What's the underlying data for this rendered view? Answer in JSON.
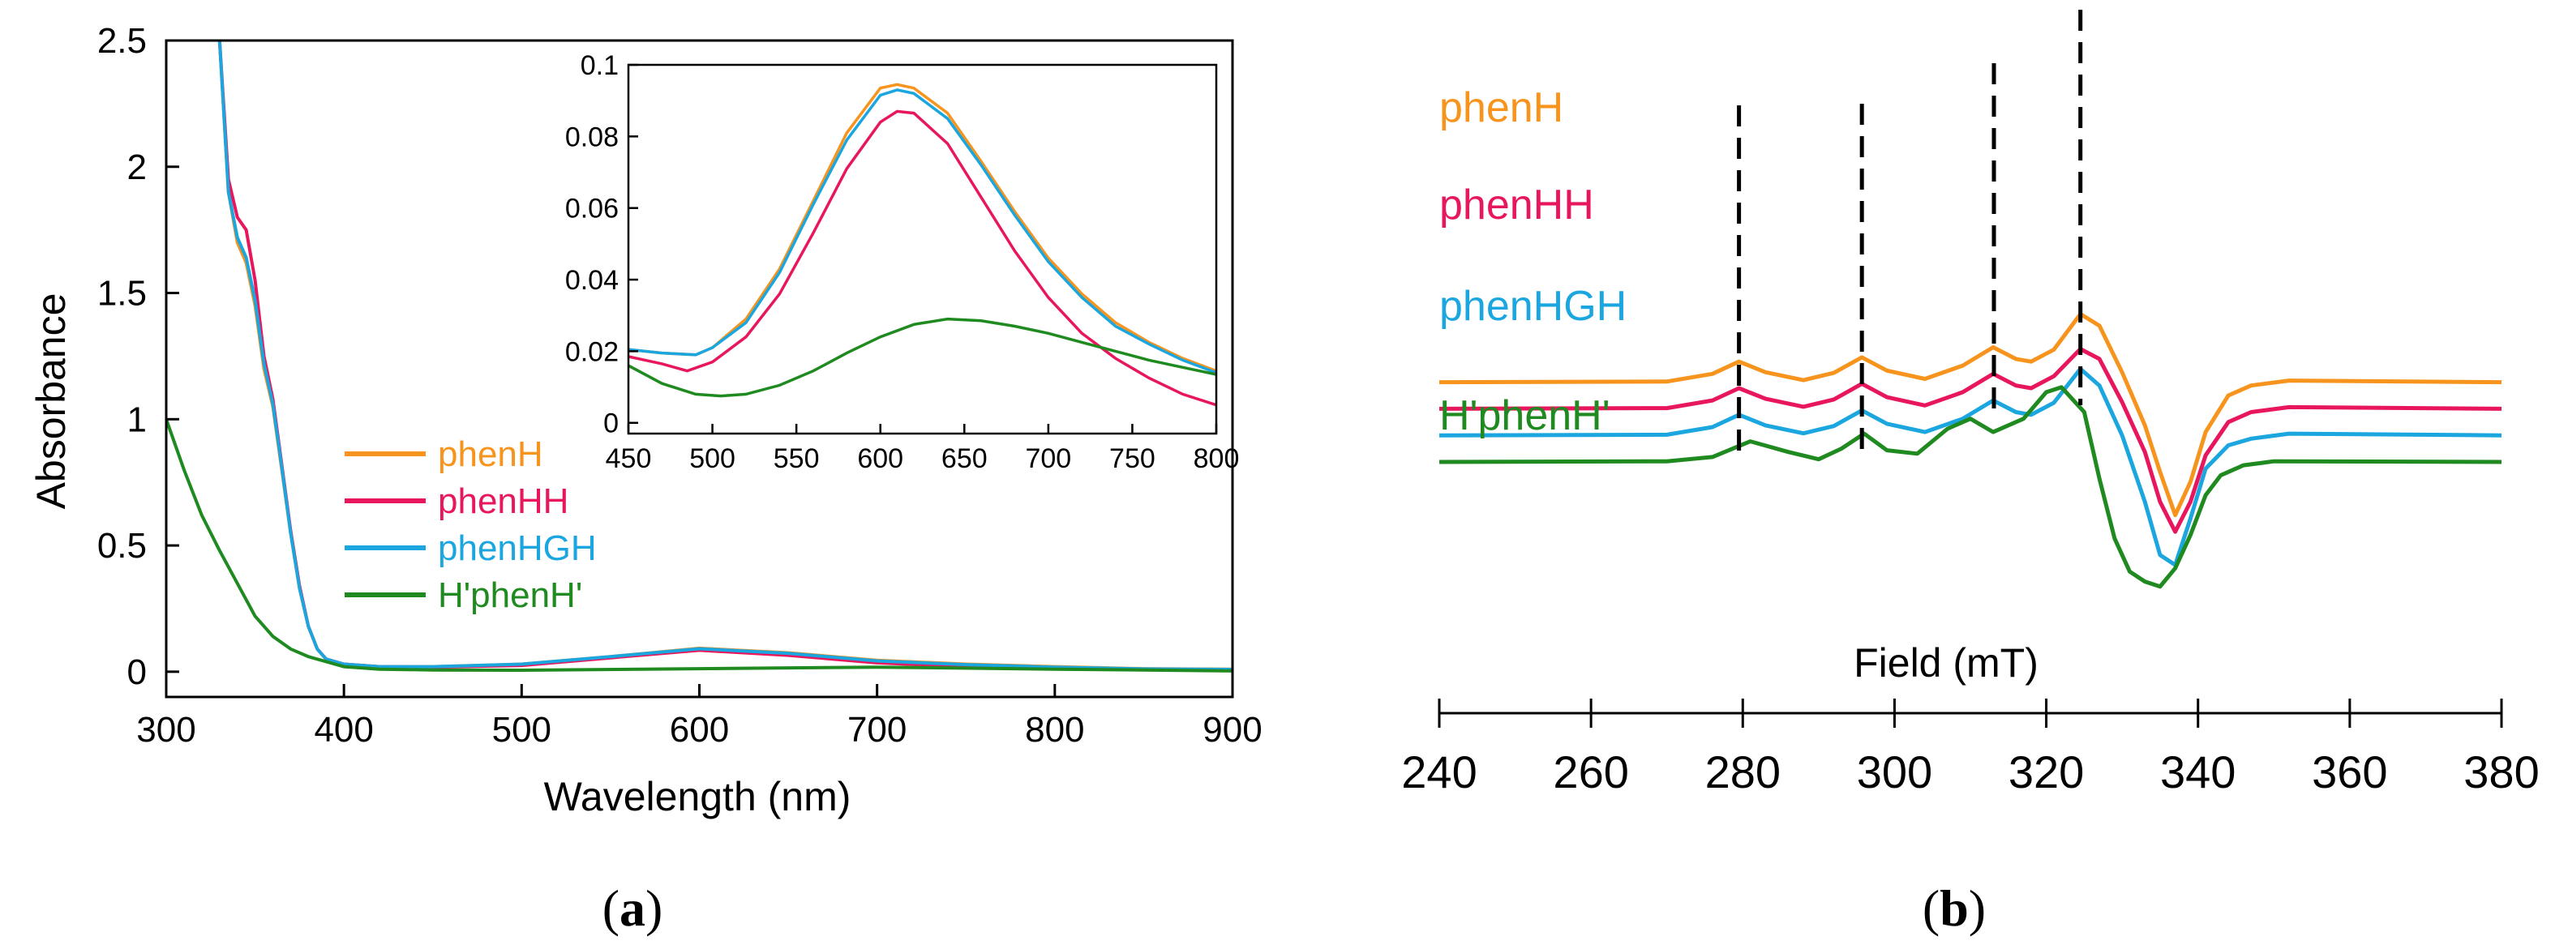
{
  "colors": {
    "phenH": "#f7941d",
    "phenHH": "#e8175d",
    "phenHGH": "#1ba6e0",
    "HphenH": "#1f8a1f",
    "axis": "#000000"
  },
  "panel_labels": {
    "a": {
      "open": "(",
      "letter": "a",
      "close": ")"
    },
    "b": {
      "open": "(",
      "letter": "b",
      "close": ")"
    }
  },
  "chart_data": [
    {
      "id": "a-main",
      "type": "line",
      "title": "",
      "xlabel": "Wavelength (nm)",
      "ylabel": "Absorbance",
      "xlim": [
        300,
        900
      ],
      "ylim": [
        -0.1,
        2.5
      ],
      "xticks": [
        300,
        400,
        500,
        600,
        700,
        800,
        900
      ],
      "xtick_labels": [
        "300",
        "400",
        "500",
        "600",
        "700",
        "800",
        "900"
      ],
      "yticks": [
        0,
        0.5,
        1,
        1.5,
        2,
        2.5
      ],
      "ytick_labels": [
        "0",
        "0.5",
        "1",
        "1.5",
        "2",
        "2.5"
      ],
      "legend": [
        "phenH",
        "phenHH",
        "phenHGH",
        "H'phenH'"
      ],
      "legend_position": "middle-left",
      "series": [
        {
          "name": "phenH",
          "x": [
            330,
            335,
            340,
            345,
            350,
            355,
            360,
            365,
            370,
            375,
            380,
            385,
            390,
            400,
            420,
            450,
            500,
            550,
            600,
            650,
            700,
            750,
            800,
            850,
            900
          ],
          "y": [
            2.5,
            1.9,
            1.7,
            1.62,
            1.45,
            1.2,
            1.05,
            0.8,
            0.55,
            0.33,
            0.18,
            0.09,
            0.05,
            0.03,
            0.02,
            0.02,
            0.03,
            0.06,
            0.093,
            0.075,
            0.045,
            0.03,
            0.02,
            0.012,
            0.01
          ]
        },
        {
          "name": "phenHH",
          "x": [
            330,
            335,
            340,
            345,
            350,
            355,
            360,
            365,
            370,
            375,
            380,
            385,
            390,
            400,
            420,
            450,
            500,
            550,
            600,
            650,
            700,
            750,
            800,
            850,
            900
          ],
          "y": [
            2.5,
            1.95,
            1.8,
            1.75,
            1.55,
            1.25,
            1.08,
            0.82,
            0.56,
            0.34,
            0.18,
            0.09,
            0.05,
            0.03,
            0.02,
            0.018,
            0.025,
            0.055,
            0.085,
            0.065,
            0.035,
            0.02,
            0.012,
            0.008,
            0.005
          ]
        },
        {
          "name": "phenHGH",
          "x": [
            330,
            335,
            340,
            345,
            350,
            355,
            360,
            365,
            370,
            375,
            380,
            385,
            390,
            400,
            420,
            450,
            500,
            550,
            600,
            650,
            700,
            750,
            800,
            850,
            900
          ],
          "y": [
            2.5,
            1.9,
            1.72,
            1.64,
            1.47,
            1.22,
            1.06,
            0.81,
            0.55,
            0.33,
            0.18,
            0.09,
            0.05,
            0.03,
            0.02,
            0.02,
            0.03,
            0.06,
            0.091,
            0.073,
            0.043,
            0.028,
            0.018,
            0.011,
            0.009
          ]
        },
        {
          "name": "H'phenH'",
          "x": [
            300,
            310,
            320,
            330,
            340,
            350,
            360,
            370,
            380,
            390,
            400,
            420,
            450,
            500,
            600,
            700,
            800,
            900
          ],
          "y": [
            1.0,
            0.8,
            0.62,
            0.48,
            0.35,
            0.22,
            0.14,
            0.09,
            0.06,
            0.04,
            0.02,
            0.01,
            0.007,
            0.006,
            0.012,
            0.018,
            0.01,
            0.003
          ]
        }
      ]
    },
    {
      "id": "a-inset",
      "type": "line",
      "title": "",
      "xlabel": "",
      "ylabel": "",
      "xlim": [
        450,
        800
      ],
      "ylim": [
        -0.003,
        0.1
      ],
      "xticks": [
        450,
        500,
        550,
        600,
        650,
        700,
        750,
        800
      ],
      "xtick_labels": [
        "450",
        "500",
        "550",
        "600",
        "650",
        "700",
        "750",
        "800"
      ],
      "yticks": [
        0,
        0.02,
        0.04,
        0.06,
        0.08,
        0.1
      ],
      "ytick_labels": [
        "0",
        "0.02",
        "0.04",
        "0.06",
        "0.08",
        "0.1"
      ],
      "series": [
        {
          "name": "phenH",
          "x": [
            450,
            470,
            490,
            500,
            520,
            540,
            560,
            580,
            600,
            610,
            620,
            640,
            660,
            680,
            700,
            720,
            740,
            760,
            780,
            800
          ],
          "y": [
            0.0205,
            0.0195,
            0.019,
            0.021,
            0.029,
            0.043,
            0.062,
            0.081,
            0.0935,
            0.0945,
            0.0935,
            0.0865,
            0.073,
            0.059,
            0.046,
            0.036,
            0.028,
            0.0225,
            0.018,
            0.0145
          ]
        },
        {
          "name": "phenHH",
          "x": [
            450,
            470,
            485,
            500,
            520,
            540,
            560,
            580,
            600,
            610,
            620,
            640,
            660,
            680,
            700,
            720,
            740,
            760,
            780,
            800
          ],
          "y": [
            0.0185,
            0.0165,
            0.0145,
            0.017,
            0.024,
            0.036,
            0.053,
            0.071,
            0.084,
            0.087,
            0.0865,
            0.078,
            0.063,
            0.048,
            0.035,
            0.025,
            0.018,
            0.0125,
            0.008,
            0.005
          ]
        },
        {
          "name": "phenHGH",
          "x": [
            450,
            470,
            490,
            500,
            520,
            540,
            560,
            580,
            600,
            610,
            620,
            640,
            660,
            680,
            700,
            720,
            740,
            760,
            780,
            800
          ],
          "y": [
            0.0205,
            0.0195,
            0.019,
            0.021,
            0.028,
            0.042,
            0.061,
            0.079,
            0.0915,
            0.093,
            0.092,
            0.085,
            0.072,
            0.058,
            0.045,
            0.035,
            0.027,
            0.022,
            0.0175,
            0.014
          ]
        },
        {
          "name": "H'phenH'",
          "x": [
            450,
            470,
            490,
            505,
            520,
            540,
            560,
            580,
            600,
            620,
            640,
            660,
            680,
            700,
            720,
            740,
            760,
            780,
            800
          ],
          "y": [
            0.016,
            0.011,
            0.008,
            0.0075,
            0.008,
            0.0105,
            0.0145,
            0.0195,
            0.024,
            0.0275,
            0.029,
            0.0285,
            0.027,
            0.025,
            0.0225,
            0.02,
            0.0175,
            0.0155,
            0.0135
          ]
        }
      ]
    },
    {
      "id": "b",
      "type": "line",
      "title": "",
      "xlabel": "Field (mT)",
      "ylabel": "",
      "xlim": [
        240,
        380
      ],
      "xticks": [
        240,
        260,
        280,
        300,
        320,
        340,
        360,
        380
      ],
      "xtick_labels": [
        "240",
        "260",
        "280",
        "300",
        "320",
        "340",
        "360",
        "380"
      ],
      "markers": [
        279.5,
        295.7,
        313.1,
        324.5
      ],
      "series": [
        {
          "name": "phenH",
          "offset": 3.0,
          "x": [
            240,
            270,
            276,
            279.5,
            283,
            288,
            292,
            295.7,
            299,
            304,
            309,
            313,
            316,
            318,
            321,
            324.5,
            327,
            330,
            333,
            335,
            337,
            339,
            341,
            344,
            347,
            352,
            380
          ],
          "y": [
            0,
            0.02,
            0.25,
            0.62,
            0.3,
            0.06,
            0.28,
            0.75,
            0.35,
            0.1,
            0.5,
            1.05,
            0.7,
            0.62,
            0.98,
            2.05,
            1.7,
            0.3,
            -1.3,
            -2.7,
            -4.0,
            -3.0,
            -1.5,
            -0.4,
            -0.1,
            0.05,
            0
          ]
        },
        {
          "name": "phenHH",
          "offset": 2.0,
          "x": [
            240,
            270,
            276,
            279.5,
            283,
            288,
            292,
            295.7,
            299,
            304,
            309,
            313,
            316,
            318,
            321,
            324.5,
            327,
            330,
            333,
            335,
            337,
            339,
            341,
            344,
            347,
            352,
            380
          ],
          "y": [
            0,
            0.02,
            0.25,
            0.62,
            0.3,
            0.06,
            0.28,
            0.75,
            0.35,
            0.1,
            0.5,
            1.05,
            0.7,
            0.62,
            0.98,
            1.8,
            1.5,
            0.2,
            -1.3,
            -2.8,
            -3.7,
            -2.8,
            -1.4,
            -0.4,
            -0.1,
            0.05,
            0
          ]
        },
        {
          "name": "phenHGH",
          "offset": 1.0,
          "x": [
            240,
            270,
            276,
            279.5,
            283,
            288,
            292,
            295.7,
            299,
            304,
            309,
            313,
            316,
            318,
            321,
            324.5,
            327,
            330,
            333,
            335,
            337,
            339,
            341,
            344,
            347,
            352,
            380
          ],
          "y": [
            0,
            0.02,
            0.25,
            0.62,
            0.3,
            0.06,
            0.28,
            0.75,
            0.35,
            0.1,
            0.5,
            1.05,
            0.7,
            0.62,
            0.98,
            2.0,
            1.5,
            0.0,
            -2.0,
            -3.6,
            -3.9,
            -2.5,
            -1.0,
            -0.3,
            -0.1,
            0.05,
            0
          ]
        },
        {
          "name": "H'phenH'",
          "offset": 0.0,
          "x": [
            240,
            270,
            276,
            281,
            286,
            290,
            293,
            296,
            299,
            303,
            307,
            310,
            313,
            317,
            320,
            322,
            325,
            327,
            329,
            331,
            333,
            335,
            337,
            339,
            341,
            343,
            346,
            350,
            380
          ],
          "y": [
            0,
            0.02,
            0.15,
            0.62,
            0.3,
            0.08,
            0.4,
            0.85,
            0.35,
            0.25,
            1.0,
            1.3,
            0.9,
            1.3,
            2.1,
            2.25,
            1.5,
            -0.5,
            -2.3,
            -3.3,
            -3.6,
            -3.75,
            -3.2,
            -2.2,
            -1.0,
            -0.4,
            -0.1,
            0.02,
            0
          ]
        }
      ]
    }
  ]
}
